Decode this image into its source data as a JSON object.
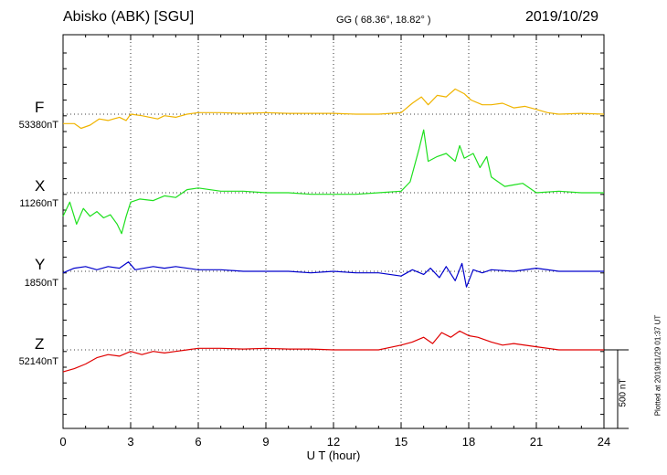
{
  "header": {
    "station": "Abisko (ABK)  [SGU]",
    "coordinates": "GG ( 68.36°,  18.82° )",
    "date": "2019/10/29"
  },
  "footer": {
    "xlabel": "U T (hour)",
    "scale_label": "500 nT",
    "plotted": "Plotted at 2019/11/29 01:37 UT"
  },
  "chart_data": {
    "type": "line",
    "xlim": [
      0,
      24
    ],
    "xticks": [
      "0",
      "3",
      "6",
      "9",
      "12",
      "15",
      "18",
      "21",
      "24"
    ],
    "xlabel": "U T (hour)",
    "grid": "dotted vertical every 3 h, dotted baseline per component",
    "scale_bar_nT": 500,
    "series": [
      {
        "name": "F",
        "baseline_label": "53380nT",
        "color": "#f0b400",
        "x": [
          0,
          0.5,
          0.8,
          1.2,
          1.6,
          2.0,
          2.5,
          2.8,
          3.0,
          3.5,
          4.2,
          4.5,
          5.0,
          5.5,
          6.0,
          7.0,
          8.0,
          9.0,
          10.0,
          11.0,
          12.0,
          13.0,
          14.0,
          15.0,
          15.5,
          15.9,
          16.2,
          16.6,
          17.0,
          17.4,
          17.8,
          18.1,
          18.6,
          19.0,
          19.5,
          20.0,
          20.5,
          21.0,
          21.5,
          22.0,
          23.0,
          24.0
        ],
        "y": [
          -60,
          -60,
          -90,
          -70,
          -30,
          -40,
          -20,
          -40,
          0,
          -10,
          -30,
          -10,
          -20,
          0,
          10,
          10,
          5,
          10,
          5,
          5,
          5,
          0,
          0,
          10,
          70,
          110,
          60,
          120,
          110,
          160,
          130,
          90,
          60,
          60,
          70,
          40,
          50,
          30,
          10,
          0,
          5,
          0
        ]
      },
      {
        "name": "X",
        "baseline_label": "11260nT",
        "color": "#1ee01e",
        "x": [
          0,
          0.3,
          0.6,
          0.9,
          1.2,
          1.5,
          1.8,
          2.1,
          2.4,
          2.6,
          2.8,
          3.0,
          3.4,
          4.0,
          4.5,
          5.0,
          5.5,
          6.0,
          7.0,
          8.0,
          9.0,
          10.0,
          11.0,
          12.0,
          13.0,
          14.0,
          15.0,
          15.4,
          15.8,
          16.0,
          16.2,
          16.6,
          17.0,
          17.4,
          17.6,
          17.8,
          18.2,
          18.5,
          18.8,
          19.0,
          19.3,
          19.6,
          20.0,
          20.4,
          21.0,
          22.0,
          23.0,
          24.0
        ],
        "y": [
          -150,
          -60,
          -200,
          -100,
          -150,
          -120,
          -160,
          -140,
          -200,
          -260,
          -150,
          -60,
          -40,
          -50,
          -20,
          -30,
          20,
          30,
          10,
          10,
          0,
          0,
          -10,
          -10,
          -10,
          0,
          10,
          70,
          280,
          400,
          200,
          230,
          250,
          200,
          300,
          220,
          250,
          160,
          230,
          100,
          70,
          40,
          50,
          60,
          0,
          10,
          0,
          0
        ]
      },
      {
        "name": "Y",
        "baseline_label": "1850nT",
        "color": "#0000cc",
        "x": [
          0,
          0.5,
          1.0,
          1.5,
          2.0,
          2.5,
          2.9,
          3.2,
          4.0,
          4.5,
          5.0,
          6.0,
          7.0,
          8.0,
          9.0,
          10.0,
          11.0,
          12.0,
          13.0,
          14.0,
          15.0,
          15.5,
          16.0,
          16.3,
          16.7,
          17.0,
          17.4,
          17.7,
          17.9,
          18.2,
          18.6,
          19.0,
          20.0,
          21.0,
          22.0,
          23.0,
          24.0
        ],
        "y": [
          -10,
          20,
          30,
          10,
          30,
          20,
          60,
          10,
          30,
          20,
          30,
          10,
          10,
          0,
          0,
          0,
          -10,
          0,
          -10,
          -10,
          -30,
          10,
          -20,
          20,
          -40,
          30,
          -60,
          50,
          -100,
          10,
          -10,
          10,
          0,
          20,
          0,
          0,
          0
        ]
      },
      {
        "name": "Z",
        "baseline_label": "52140nT",
        "color": "#e00000",
        "x": [
          0,
          0.5,
          1.0,
          1.5,
          2.0,
          2.5,
          3.0,
          3.5,
          4.0,
          4.5,
          5.0,
          5.5,
          6.0,
          7.0,
          8.0,
          9.0,
          10.0,
          11.0,
          12.0,
          13.0,
          14.0,
          15.0,
          15.5,
          16.0,
          16.4,
          16.8,
          17.2,
          17.6,
          18.0,
          18.4,
          19.0,
          19.5,
          20.0,
          21.0,
          22.0,
          23.0,
          24.0
        ],
        "y": [
          -140,
          -120,
          -90,
          -50,
          -30,
          -40,
          -10,
          -30,
          -10,
          -20,
          -10,
          0,
          10,
          10,
          5,
          10,
          5,
          5,
          0,
          0,
          0,
          30,
          50,
          80,
          40,
          110,
          80,
          120,
          90,
          80,
          50,
          30,
          40,
          20,
          0,
          0,
          0
        ]
      }
    ]
  }
}
